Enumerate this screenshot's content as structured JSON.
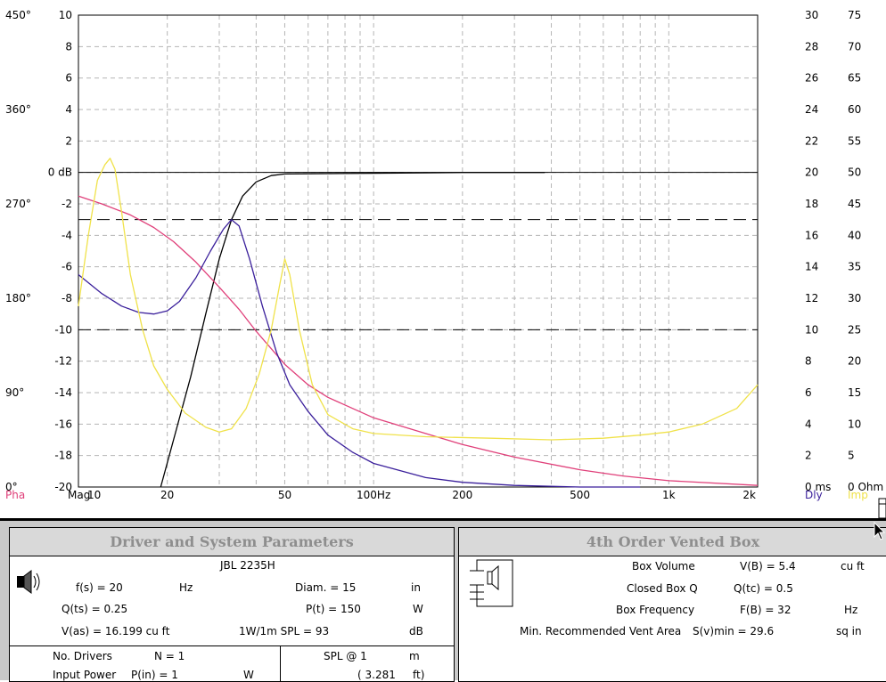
{
  "chart_data": {
    "type": "line",
    "xscale": "log",
    "xlim": [
      10,
      2000
    ],
    "ylim": [
      -20,
      10
    ],
    "x_ticks": [
      {
        "v": 10,
        "label": "10"
      },
      {
        "v": 20,
        "label": "20"
      },
      {
        "v": 50,
        "label": "50"
      },
      {
        "v": 100,
        "label": "100Hz"
      },
      {
        "v": 200,
        "label": "200"
      },
      {
        "v": 500,
        "label": "500"
      },
      {
        "v": 1000,
        "label": "1k"
      },
      {
        "v": 2000,
        "label": "2k"
      }
    ],
    "x_minor_gridlines": [
      30,
      40,
      60,
      70,
      80,
      90,
      300,
      400,
      600,
      700,
      800,
      900
    ],
    "y_ticks": [
      10,
      8,
      6,
      4,
      2,
      0,
      -2,
      -4,
      -6,
      -8,
      -10,
      -12,
      -14,
      -16,
      -18,
      -20
    ],
    "zero_label": "0 dB",
    "left_axis_labels": [
      {
        "at": 10,
        "label": "450°"
      },
      {
        "at": 4,
        "label": "360°"
      },
      {
        "at": -2,
        "label": "270°"
      },
      {
        "at": -8,
        "label": "180°"
      },
      {
        "at": -14,
        "label": "90°"
      },
      {
        "at": -20,
        "label": "0°"
      }
    ],
    "right_axis_dly": [
      "30",
      "28",
      "26",
      "24",
      "22",
      "20",
      "18",
      "16",
      "14",
      "12",
      "10",
      "8",
      "6",
      "4",
      "2",
      "0 ms"
    ],
    "right_axis_imp": [
      "75",
      "70",
      "65",
      "60",
      "55",
      "50",
      "45",
      "40",
      "35",
      "30",
      "25",
      "20",
      "15",
      "10",
      "5",
      "0 Ohm"
    ],
    "axis_names": {
      "pha": "Pha",
      "mag": "Mag",
      "dly": "Dly",
      "imp": "Imp"
    },
    "reference_lines": [
      {
        "y": 0,
        "style": "solid"
      },
      {
        "y": -3,
        "style": "dashed"
      },
      {
        "y": -10,
        "style": "dashed"
      }
    ],
    "series": [
      {
        "name": "Mag",
        "color": "#000000",
        "points": [
          [
            19,
            -20
          ],
          [
            21,
            -17
          ],
          [
            24,
            -13
          ],
          [
            27,
            -9
          ],
          [
            30,
            -5.5
          ],
          [
            33,
            -3
          ],
          [
            36,
            -1.5
          ],
          [
            40,
            -0.6
          ],
          [
            45,
            -0.2
          ],
          [
            50,
            -0.1
          ],
          [
            100,
            -0.05
          ],
          [
            200,
            0
          ],
          [
            380,
            0
          ]
        ]
      },
      {
        "name": "Pha",
        "color": "#e0407a",
        "points": [
          [
            10,
            -1.5
          ],
          [
            12,
            -2
          ],
          [
            15,
            -2.7
          ],
          [
            18,
            -3.5
          ],
          [
            21,
            -4.4
          ],
          [
            25,
            -5.7
          ],
          [
            30,
            -7.3
          ],
          [
            35,
            -8.7
          ],
          [
            40,
            -10.1
          ],
          [
            50,
            -12.2
          ],
          [
            60,
            -13.5
          ],
          [
            70,
            -14.3
          ],
          [
            100,
            -15.6
          ],
          [
            150,
            -16.6
          ],
          [
            200,
            -17.3
          ],
          [
            300,
            -18.1
          ],
          [
            500,
            -18.9
          ],
          [
            700,
            -19.3
          ],
          [
            1000,
            -19.6
          ],
          [
            2000,
            -19.9
          ]
        ]
      },
      {
        "name": "Dly",
        "color": "#3a1f9b",
        "points": [
          [
            10,
            -6.5
          ],
          [
            12,
            -7.7
          ],
          [
            14,
            -8.5
          ],
          [
            16,
            -8.9
          ],
          [
            18,
            -9
          ],
          [
            20,
            -8.8
          ],
          [
            22,
            -8.2
          ],
          [
            25,
            -6.7
          ],
          [
            28,
            -5
          ],
          [
            31,
            -3.6
          ],
          [
            33,
            -3
          ],
          [
            35,
            -3.4
          ],
          [
            38,
            -5.5
          ],
          [
            42,
            -8.5
          ],
          [
            47,
            -11.5
          ],
          [
            52,
            -13.5
          ],
          [
            60,
            -15.2
          ],
          [
            70,
            -16.7
          ],
          [
            85,
            -17.8
          ],
          [
            100,
            -18.5
          ],
          [
            150,
            -19.4
          ],
          [
            200,
            -19.7
          ],
          [
            300,
            -19.9
          ],
          [
            500,
            -20
          ],
          [
            800,
            -20
          ]
        ]
      },
      {
        "name": "Imp",
        "color": "#f0e24a",
        "points": [
          [
            10,
            -8.5
          ],
          [
            10.8,
            -4
          ],
          [
            11.6,
            -0.5
          ],
          [
            12.3,
            0.5
          ],
          [
            12.8,
            0.9
          ],
          [
            13.3,
            0.2
          ],
          [
            14,
            -2.5
          ],
          [
            15,
            -6.5
          ],
          [
            16.5,
            -10
          ],
          [
            18,
            -12.3
          ],
          [
            20,
            -13.8
          ],
          [
            23,
            -15.3
          ],
          [
            27,
            -16.2
          ],
          [
            30,
            -16.5
          ],
          [
            33,
            -16.3
          ],
          [
            37,
            -15
          ],
          [
            41,
            -12.8
          ],
          [
            45,
            -10
          ],
          [
            48,
            -7.2
          ],
          [
            50,
            -5.5
          ],
          [
            52,
            -6.5
          ],
          [
            56,
            -10
          ],
          [
            62,
            -13.5
          ],
          [
            70,
            -15.4
          ],
          [
            85,
            -16.3
          ],
          [
            100,
            -16.6
          ],
          [
            150,
            -16.8
          ],
          [
            250,
            -16.9
          ],
          [
            400,
            -17
          ],
          [
            600,
            -16.9
          ],
          [
            800,
            -16.7
          ],
          [
            1000,
            -16.5
          ],
          [
            1300,
            -16
          ],
          [
            1700,
            -15
          ],
          [
            2000,
            -13.5
          ]
        ]
      }
    ]
  },
  "panels": {
    "driver": {
      "title": "Driver and System Parameters",
      "name": "JBL 2235H",
      "fs_label": "f(s) = 20",
      "fs_unit": "Hz",
      "diam_label": "Diam. = 15",
      "diam_unit": "in",
      "qts_label": "Q(ts) = 0.25",
      "pt_label": "P(t) = 150",
      "pt_unit": "W",
      "vas_label": "V(as) = 16.199 cu ft",
      "spl_label": "1W/1m SPL = 93",
      "spl_unit": "dB",
      "ndrivers_label": "No. Drivers",
      "ndrivers_value": "N = 1",
      "power_label": "Input Power",
      "power_value": "P(in) = 1",
      "power_unit": "W",
      "splat_label": "SPL @ 1",
      "splat_unit": "m",
      "splat_ft": "( 3.281",
      "splat_ft_unit": "ft)"
    },
    "box": {
      "title": "4th Order Vented Box",
      "vol_label": "Box Volume",
      "vol_value": "V(B) = 5.4",
      "vol_unit": "cu ft",
      "qtc_label": "Closed Box Q",
      "qtc_value": "Q(tc) = 0.5",
      "fb_label": "Box Frequency",
      "fb_value": "F(B) = 32",
      "fb_unit": "Hz",
      "vent_label": "Min. Recommended Vent Area",
      "vent_value": "S(v)min = 29.6",
      "vent_unit": "sq in"
    }
  }
}
